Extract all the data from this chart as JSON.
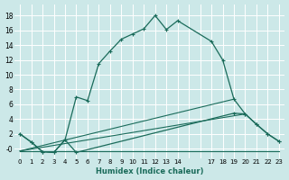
{
  "xlabel": "Humidex (Indice chaleur)",
  "background_color": "#cce8e8",
  "grid_color": "#b8d8d8",
  "line_color": "#1a6b5a",
  "xlim": [
    -0.5,
    23.5
  ],
  "ylim": [
    -1.3,
    19.5
  ],
  "xtick_pos": [
    0,
    1,
    2,
    3,
    4,
    5,
    6,
    7,
    8,
    9,
    10,
    11,
    12,
    13,
    14,
    17,
    18,
    19,
    20,
    21,
    22,
    23
  ],
  "xtick_labels": [
    "0",
    "1",
    "2",
    "3",
    "4",
    "5",
    "6",
    "7",
    "8",
    "9",
    "10",
    "11",
    "12",
    "13",
    "14",
    "17",
    "18",
    "19",
    "20",
    "21",
    "22",
    "23"
  ],
  "ytick_pos": [
    0,
    2,
    4,
    6,
    8,
    10,
    12,
    14,
    16,
    18
  ],
  "ytick_labels": [
    "-0",
    "2",
    "4",
    "6",
    "8",
    "10",
    "12",
    "14",
    "16",
    "18"
  ],
  "curve1_x": [
    0,
    1,
    2,
    3,
    4,
    5,
    6,
    7,
    8,
    9,
    10,
    11,
    12,
    13,
    14,
    17,
    18,
    19,
    20,
    21,
    22,
    23
  ],
  "curve1_y": [
    2.0,
    0.9,
    -0.4,
    -0.5,
    1.2,
    7.0,
    6.5,
    11.5,
    13.2,
    14.8,
    15.5,
    16.2,
    18.0,
    16.1,
    17.3,
    14.5,
    12.0,
    6.7,
    4.7,
    3.3,
    2.0,
    1.0
  ],
  "curve2_x": [
    0,
    1,
    2,
    3,
    4,
    5,
    19,
    20,
    21,
    22,
    23
  ],
  "curve2_y": [
    2.0,
    0.9,
    -0.4,
    -0.5,
    1.2,
    -0.5,
    4.8,
    4.7,
    3.3,
    2.0,
    1.0
  ],
  "line1_x": [
    0,
    23
  ],
  "line1_y": [
    -0.3,
    -0.3
  ],
  "line2_x": [
    0,
    19
  ],
  "line2_y": [
    -0.3,
    6.7
  ],
  "line3_x": [
    0,
    20
  ],
  "line3_y": [
    -0.3,
    4.7
  ]
}
